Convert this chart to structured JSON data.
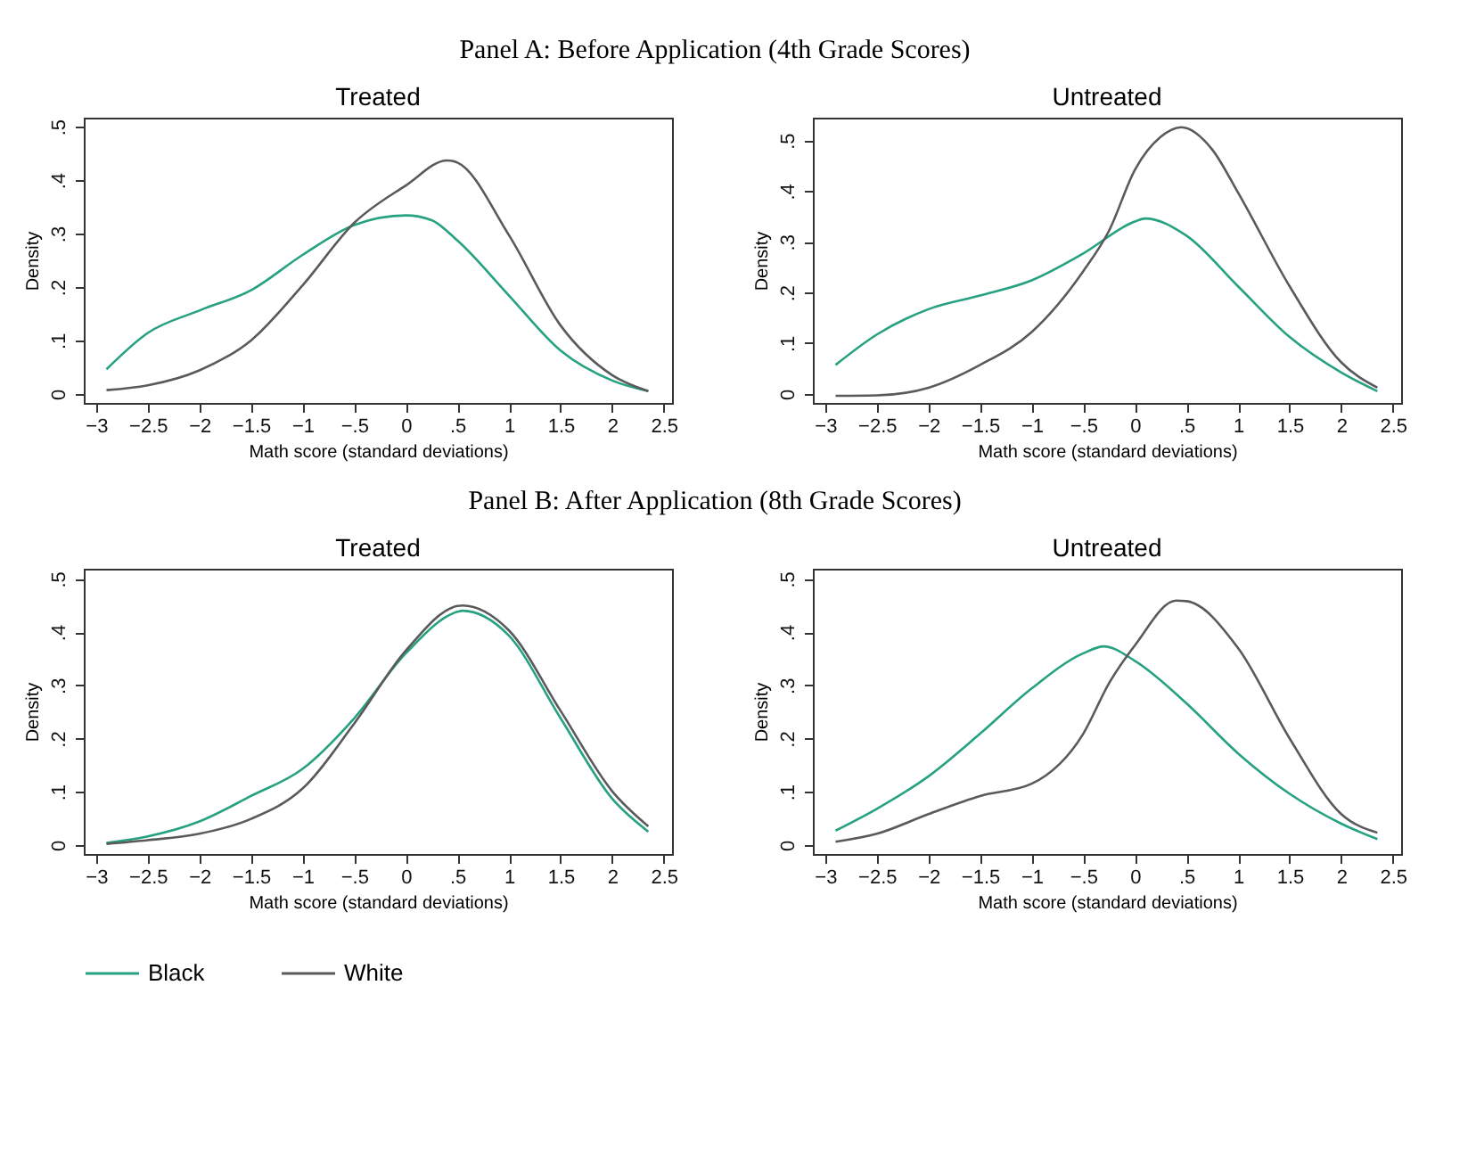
{
  "chart_data": [
    {
      "type": "line",
      "title": "Treated",
      "xlabel": "Math score (standard deviations)",
      "ylabel": "Density",
      "annotations": [
        "Panel A: Before Application (4th Grade Scores)"
      ],
      "legend": "bottom",
      "xlim": [
        -3.12,
        2.58
      ],
      "ylim": [
        -0.017,
        0.517
      ],
      "xticks": [
        {
          "value": -3,
          "label": "−3"
        },
        {
          "value": -2.5,
          "label": "−2.5"
        },
        {
          "value": -2,
          "label": "−2"
        },
        {
          "value": -1.5,
          "label": "−1.5"
        },
        {
          "value": -1,
          "label": "−1"
        },
        {
          "value": -0.5,
          "label": "−.5"
        },
        0,
        {
          "value": 0.5,
          "label": ".5"
        },
        1,
        1.5,
        2,
        2.5
      ],
      "yticks": [
        0,
        {
          "value": 0.1,
          "label": ".1"
        },
        {
          "value": 0.2,
          "label": ".2"
        },
        {
          "value": 0.3,
          "label": ".3"
        },
        {
          "value": 0.4,
          "label": ".4"
        },
        {
          "value": 0.5,
          "label": ".5"
        }
      ],
      "series": [
        {
          "name": "Black",
          "color": "#26a181",
          "x": [
            -2.9,
            -2.5,
            -2,
            -1.5,
            -1,
            -0.5,
            0,
            0.25,
            0.5,
            1,
            1.5,
            2,
            2.35
          ],
          "values": [
            0.046,
            0.114,
            0.156,
            0.194,
            0.26,
            0.316,
            0.334,
            0.325,
            0.287,
            0.184,
            0.081,
            0.025,
            0.005
          ]
        },
        {
          "name": "White",
          "color": "#5a5a5a",
          "x": [
            -2.9,
            -2.5,
            -2,
            -1.5,
            -1,
            -0.5,
            0,
            0.4,
            0.5,
            1,
            1.5,
            2,
            2.35
          ],
          "values": [
            0.007,
            0.016,
            0.044,
            0.1,
            0.203,
            0.32,
            0.39,
            0.437,
            0.433,
            0.297,
            0.128,
            0.035,
            0.005
          ]
        }
      ]
    },
    {
      "type": "line",
      "title": "Untreated",
      "xlabel": "Math score (standard deviations)",
      "ylabel": "Density",
      "legend": "bottom",
      "xlim": [
        -3.12,
        2.58
      ],
      "ylim": [
        -0.018,
        0.545
      ],
      "xticks": [
        {
          "value": -3,
          "label": "−3"
        },
        {
          "value": -2.5,
          "label": "−2.5"
        },
        {
          "value": -2,
          "label": "−2"
        },
        {
          "value": -1.5,
          "label": "−1.5"
        },
        {
          "value": -1,
          "label": "−1"
        },
        {
          "value": -0.5,
          "label": "−.5"
        },
        0,
        {
          "value": 0.5,
          "label": ".5"
        },
        1,
        1.5,
        2,
        2.5
      ],
      "yticks": [
        0,
        {
          "value": 0.1,
          "label": ".1"
        },
        {
          "value": 0.2,
          "label": ".2"
        },
        {
          "value": 0.3,
          "label": ".3"
        },
        {
          "value": 0.4,
          "label": ".4"
        },
        {
          "value": 0.5,
          "label": ".5"
        }
      ],
      "series": [
        {
          "name": "Black",
          "color": "#26a181",
          "x": [
            -2.9,
            -2.5,
            -2,
            -1.5,
            -1,
            -0.5,
            0,
            0.1,
            0.5,
            1,
            1.5,
            2,
            2.35
          ],
          "values": [
            0.057,
            0.117,
            0.167,
            0.194,
            0.224,
            0.277,
            0.34,
            0.346,
            0.312,
            0.212,
            0.112,
            0.042,
            0.005
          ]
        },
        {
          "name": "White",
          "color": "#5a5a5a",
          "x": [
            -2.9,
            -2.5,
            -2,
            -1.5,
            -1,
            -0.5,
            -0.25,
            0,
            0.25,
            0.45,
            0.75,
            1,
            1.5,
            2,
            2.35
          ],
          "values": [
            -0.004,
            -0.003,
            0.012,
            0.057,
            0.122,
            0.242,
            0.322,
            0.442,
            0.507,
            0.526,
            0.482,
            0.397,
            0.212,
            0.062,
            0.012
          ]
        }
      ]
    },
    {
      "type": "line",
      "title": "Treated",
      "xlabel": "Math score (standard deviations)",
      "ylabel": "Density",
      "annotations": [
        "Panel B: After Application (8th Grade Scores)"
      ],
      "legend": "bottom",
      "xlim": [
        -3.12,
        2.58
      ],
      "ylim": [
        -0.017,
        0.519
      ],
      "xticks": [
        {
          "value": -3,
          "label": "−3"
        },
        {
          "value": -2.5,
          "label": "−2.5"
        },
        {
          "value": -2,
          "label": "−2"
        },
        {
          "value": -1.5,
          "label": "−1.5"
        },
        {
          "value": -1,
          "label": "−1"
        },
        {
          "value": -0.5,
          "label": "−.5"
        },
        0,
        {
          "value": 0.5,
          "label": ".5"
        },
        1,
        1.5,
        2,
        2.5
      ],
      "yticks": [
        0,
        {
          "value": 0.1,
          "label": ".1"
        },
        {
          "value": 0.2,
          "label": ".2"
        },
        {
          "value": 0.3,
          "label": ".3"
        },
        {
          "value": 0.4,
          "label": ".4"
        },
        {
          "value": 0.5,
          "label": ".5"
        }
      ],
      "series": [
        {
          "name": "Black",
          "color": "#26a181",
          "x": [
            -2.9,
            -2.5,
            -2,
            -1.5,
            -1,
            -0.5,
            0,
            0.5,
            0.55,
            1,
            1.5,
            2,
            2.35
          ],
          "values": [
            0.004,
            0.016,
            0.044,
            0.092,
            0.143,
            0.238,
            0.36,
            0.438,
            0.44,
            0.393,
            0.238,
            0.087,
            0.025
          ]
        },
        {
          "name": "White",
          "color": "#5a5a5a",
          "x": [
            -2.9,
            -2.5,
            -2,
            -1.5,
            -1,
            -0.5,
            0,
            0.5,
            0.55,
            1,
            1.5,
            2,
            2.35
          ],
          "values": [
            0.002,
            0.009,
            0.021,
            0.049,
            0.106,
            0.228,
            0.365,
            0.449,
            0.45,
            0.403,
            0.252,
            0.101,
            0.035
          ]
        }
      ]
    },
    {
      "type": "line",
      "title": "Untreated",
      "xlabel": "Math score (standard deviations)",
      "ylabel": "Density",
      "legend": "bottom",
      "xlim": [
        -3.12,
        2.58
      ],
      "ylim": [
        -0.017,
        0.519
      ],
      "xticks": [
        {
          "value": -3,
          "label": "−3"
        },
        {
          "value": -2.5,
          "label": "−2.5"
        },
        {
          "value": -2,
          "label": "−2"
        },
        {
          "value": -1.5,
          "label": "−1.5"
        },
        {
          "value": -1,
          "label": "−1"
        },
        {
          "value": -0.5,
          "label": "−.5"
        },
        0,
        {
          "value": 0.5,
          "label": ".5"
        },
        1,
        1.5,
        2,
        2.5
      ],
      "yticks": [
        0,
        {
          "value": 0.1,
          "label": ".1"
        },
        {
          "value": 0.2,
          "label": ".2"
        },
        {
          "value": 0.3,
          "label": ".3"
        },
        {
          "value": 0.4,
          "label": ".4"
        },
        {
          "value": 0.5,
          "label": ".5"
        }
      ],
      "series": [
        {
          "name": "Black",
          "color": "#26a181",
          "x": [
            -2.9,
            -2.5,
            -2,
            -1.5,
            -1,
            -0.5,
            -0.3,
            0,
            0.5,
            1,
            1.5,
            2,
            2.35
          ],
          "values": [
            0.027,
            0.068,
            0.129,
            0.209,
            0.294,
            0.36,
            0.373,
            0.346,
            0.266,
            0.172,
            0.096,
            0.04,
            0.011
          ]
        },
        {
          "name": "White",
          "color": "#5a5a5a",
          "x": [
            -2.9,
            -2.5,
            -2,
            -1.5,
            -1,
            -0.5,
            -0.25,
            0,
            0.4,
            0.5,
            1,
            1.5,
            2,
            2.35
          ],
          "values": [
            0.006,
            0.021,
            0.058,
            0.092,
            0.115,
            0.209,
            0.304,
            0.375,
            0.459,
            0.458,
            0.37,
            0.2,
            0.058,
            0.023
          ]
        }
      ]
    }
  ]
}
